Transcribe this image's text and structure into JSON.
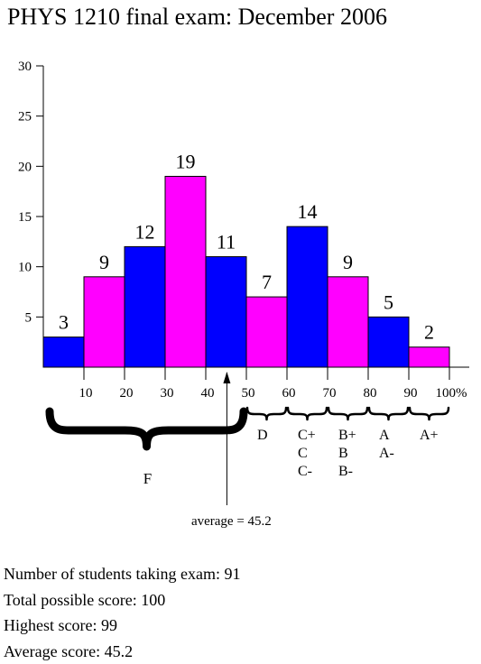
{
  "title": "PHYS 1210 final exam: December 2006",
  "chart_data": {
    "type": "bar",
    "title": "PHYS 1210 final exam: December 2006",
    "categories": [
      "0-10",
      "10-20",
      "20-30",
      "30-40",
      "40-50",
      "50-60",
      "60-70",
      "70-80",
      "80-90",
      "90-100"
    ],
    "values": [
      3,
      9,
      12,
      19,
      11,
      7,
      14,
      9,
      5,
      2
    ],
    "bar_colors": [
      "#0000ff",
      "#ff00ff",
      "#0000ff",
      "#ff00ff",
      "#0000ff",
      "#ff00ff",
      "#0000ff",
      "#ff00ff",
      "#0000ff",
      "#ff00ff"
    ],
    "ylim": [
      0,
      30
    ],
    "xlim": [
      0,
      100
    ],
    "y_ticks": [
      5,
      10,
      15,
      20,
      25,
      30
    ],
    "x_tick_labels": [
      "10",
      "20",
      "30",
      "40",
      "50",
      "60",
      "70",
      "80",
      "90",
      "100%"
    ],
    "grade_groups": [
      {
        "range": [
          0,
          50
        ],
        "grades": [
          "F"
        ]
      },
      {
        "range": [
          50,
          60
        ],
        "grades": [
          "D"
        ]
      },
      {
        "range": [
          60,
          70
        ],
        "grades": [
          "C+",
          "C",
          "C-"
        ]
      },
      {
        "range": [
          70,
          80
        ],
        "grades": [
          "B+",
          "B",
          "B-"
        ]
      },
      {
        "range": [
          80,
          90
        ],
        "grades": [
          "A",
          "A-"
        ]
      },
      {
        "range": [
          90,
          100
        ],
        "grades": [
          "A+"
        ]
      }
    ],
    "average": 45.2,
    "average_label": "average = 45.2"
  },
  "stats": {
    "students": "Number of students taking exam: 91",
    "total": "Total possible score: 100",
    "highest": "Highest score: 99",
    "average": "Average score: 45.2"
  },
  "colors": {
    "blue": "#0000ff",
    "magenta": "#ff00ff"
  }
}
